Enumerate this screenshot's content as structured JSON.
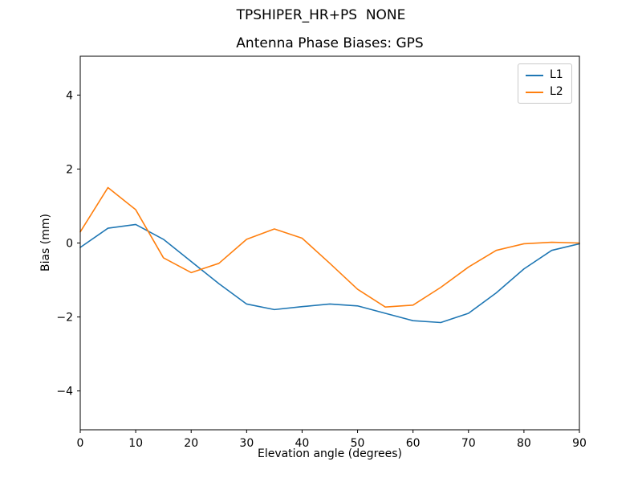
{
  "figure": {
    "suptitle": "TPSHIPER_HR+PS  NONE",
    "background_color": "#ffffff",
    "spine_color": "#000000"
  },
  "chart_data": {
    "type": "line",
    "title": "Antenna Phase Biases: GPS",
    "xlabel": "Elevation angle (degrees)",
    "ylabel": "Bias (mm)",
    "xlim": [
      0,
      90
    ],
    "ylim": [
      -5.05,
      5.05
    ],
    "xticks": [
      0,
      10,
      20,
      30,
      40,
      50,
      60,
      70,
      80,
      90
    ],
    "yticks": [
      -4,
      -2,
      0,
      2,
      4
    ],
    "grid": false,
    "legend_position": "upper right",
    "x": [
      0,
      5,
      10,
      15,
      20,
      25,
      30,
      35,
      40,
      45,
      50,
      55,
      60,
      65,
      70,
      75,
      80,
      85,
      90
    ],
    "series": [
      {
        "name": "L1",
        "color": "#1f77b4",
        "values": [
          -0.12,
          0.4,
          0.5,
          0.1,
          -0.5,
          -1.1,
          -1.65,
          -1.8,
          -1.72,
          -1.65,
          -1.7,
          -1.9,
          -2.1,
          -2.15,
          -1.9,
          -1.35,
          -0.7,
          -0.2,
          -0.02
        ]
      },
      {
        "name": "L2",
        "color": "#ff7f0e",
        "values": [
          0.3,
          1.5,
          0.9,
          -0.4,
          -0.8,
          -0.55,
          0.1,
          0.38,
          0.13,
          -0.55,
          -1.25,
          -1.73,
          -1.68,
          -1.2,
          -0.65,
          -0.2,
          -0.02,
          0.02,
          0.0
        ]
      }
    ]
  }
}
